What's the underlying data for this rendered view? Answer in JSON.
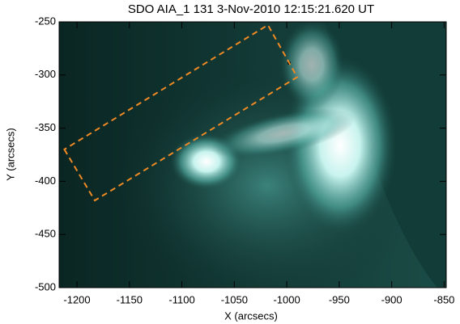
{
  "chart_data": {
    "type": "image",
    "title": "SDO AIA_1 131  3-Nov-2010 12:15:21.620 UT",
    "x_label": "X (arcsecs)",
    "y_label": "Y (arcsecs)",
    "xlim": [
      -1217,
      -848
    ],
    "ylim": [
      -500,
      -250
    ],
    "xticks": [
      -1200,
      -1150,
      -1100,
      -1050,
      -1000,
      -950,
      -900,
      -850
    ],
    "yticks": [
      -500,
      -450,
      -400,
      -350,
      -300,
      -250
    ],
    "box": {
      "x": [
        -1212,
        -1183,
        -990,
        -1018
      ],
      "y": [
        -370,
        -418,
        -302,
        -253
      ],
      "color": "#f08a24"
    }
  }
}
